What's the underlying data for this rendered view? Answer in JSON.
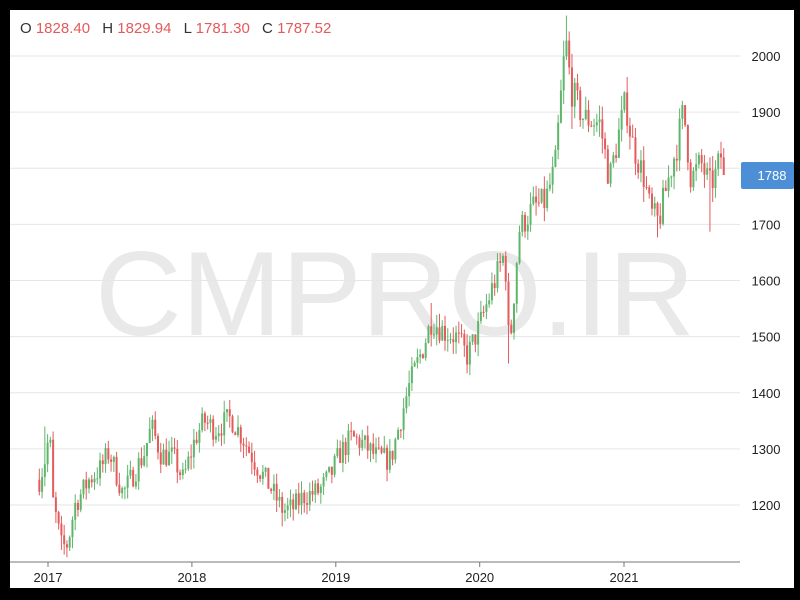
{
  "ohlc": {
    "o_label": "O",
    "o": "1828.40",
    "h_label": "H",
    "h": "1829.94",
    "l_label": "L",
    "l": "1781.30",
    "c_label": "C",
    "c": "1787.52"
  },
  "watermark": "CMPRO.IR",
  "last_price_label": "1788",
  "colors": {
    "up": "#5fb56b",
    "down": "#e35b5b",
    "badge": "#4d8fd6",
    "grid": "#e6e6e6"
  },
  "chart_data": {
    "type": "candlestick-weekly",
    "y_ticks": [
      1200,
      1300,
      1400,
      1500,
      1600,
      1700,
      1800,
      1900,
      2000
    ],
    "y_tick_labels": [
      "1200",
      "1300",
      "1400",
      "1500",
      "1600",
      "1700",
      "1800",
      "1900",
      "2000"
    ],
    "x_ticks": [
      "2017",
      "2018",
      "2019",
      "2020",
      "2021"
    ],
    "ylim": [
      1110,
      2070
    ],
    "last_price": 1788,
    "anchors": [
      [
        "2016-12-10",
        1245
      ],
      [
        "2016-12-24",
        1280
      ],
      [
        "2017-01-05",
        1330
      ],
      [
        "2017-01-14",
        1205
      ],
      [
        "2017-02-05",
        1125
      ],
      [
        "2017-02-20",
        1130
      ],
      [
        "2017-03-10",
        1200
      ],
      [
        "2017-04-15",
        1245
      ],
      [
        "2017-05-15",
        1265
      ],
      [
        "2017-06-05",
        1295
      ],
      [
        "2017-07-10",
        1220
      ],
      [
        "2017-09-01",
        1290
      ],
      [
        "2017-09-20",
        1340
      ],
      [
        "2017-10-15",
        1290
      ],
      [
        "2017-11-15",
        1285
      ],
      [
        "2017-12-10",
        1245
      ],
      [
        "2018-01-10",
        1320
      ],
      [
        "2018-02-01",
        1350
      ],
      [
        "2018-03-01",
        1335
      ],
      [
        "2018-04-10",
        1355
      ],
      [
        "2018-05-10",
        1320
      ],
      [
        "2018-06-15",
        1270
      ],
      [
        "2018-07-20",
        1230
      ],
      [
        "2018-08-20",
        1190
      ],
      [
        "2018-09-15",
        1195
      ],
      [
        "2018-10-10",
        1215
      ],
      [
        "2018-11-20",
        1225
      ],
      [
        "2018-12-20",
        1255
      ],
      [
        "2019-01-10",
        1290
      ],
      [
        "2019-02-10",
        1320
      ],
      [
        "2019-03-10",
        1310
      ],
      [
        "2019-04-15",
        1285
      ],
      [
        "2019-05-20",
        1280
      ],
      [
        "2019-06-10",
        1340
      ],
      [
        "2019-07-05",
        1410
      ],
      [
        "2019-08-10",
        1480
      ],
      [
        "2019-09-01",
        1530
      ],
      [
        "2019-10-01",
        1510
      ],
      [
        "2019-11-01",
        1500
      ],
      [
        "2019-12-01",
        1465
      ],
      [
        "2020-01-01",
        1520
      ],
      [
        "2020-02-01",
        1585
      ],
      [
        "2020-03-05",
        1650
      ],
      [
        "2020-03-16",
        1470
      ],
      [
        "2020-04-10",
        1690
      ],
      [
        "2020-05-15",
        1730
      ],
      [
        "2020-06-15",
        1740
      ],
      [
        "2020-07-10",
        1800
      ],
      [
        "2020-08-06",
        2030
      ],
      [
        "2020-08-20",
        1940
      ],
      [
        "2020-09-20",
        1890
      ],
      [
        "2020-11-01",
        1880
      ],
      [
        "2020-11-25",
        1780
      ],
      [
        "2021-01-05",
        1920
      ],
      [
        "2021-01-20",
        1850
      ],
      [
        "2021-02-20",
        1785
      ],
      [
        "2021-03-10",
        1720
      ],
      [
        "2021-03-30",
        1705
      ],
      [
        "2021-04-20",
        1770
      ],
      [
        "2021-05-15",
        1840
      ],
      [
        "2021-06-01",
        1905
      ],
      [
        "2021-06-20",
        1780
      ],
      [
        "2021-07-15",
        1810
      ],
      [
        "2021-08-06",
        1770
      ],
      [
        "2021-08-20",
        1785
      ],
      [
        "2021-09-05",
        1825
      ],
      [
        "2021-09-15",
        1788
      ]
    ],
    "spikes": [
      [
        "2016-12-24",
        "high",
        1340
      ],
      [
        "2017-02-05",
        "low",
        1120
      ],
      [
        "2017-09-20",
        "high",
        1360
      ],
      [
        "2018-04-10",
        "high",
        1368
      ],
      [
        "2018-08-20",
        "low",
        1162
      ],
      [
        "2019-09-01",
        "high",
        1560
      ],
      [
        "2020-03-16",
        "low",
        1452
      ],
      [
        "2020-08-06",
        "high",
        2072
      ],
      [
        "2020-08-20",
        "low",
        1870
      ],
      [
        "2021-03-30",
        "low",
        1677
      ],
      [
        "2021-08-06",
        "low",
        1687
      ],
      [
        "2021-06-01",
        "high",
        1918
      ]
    ]
  }
}
